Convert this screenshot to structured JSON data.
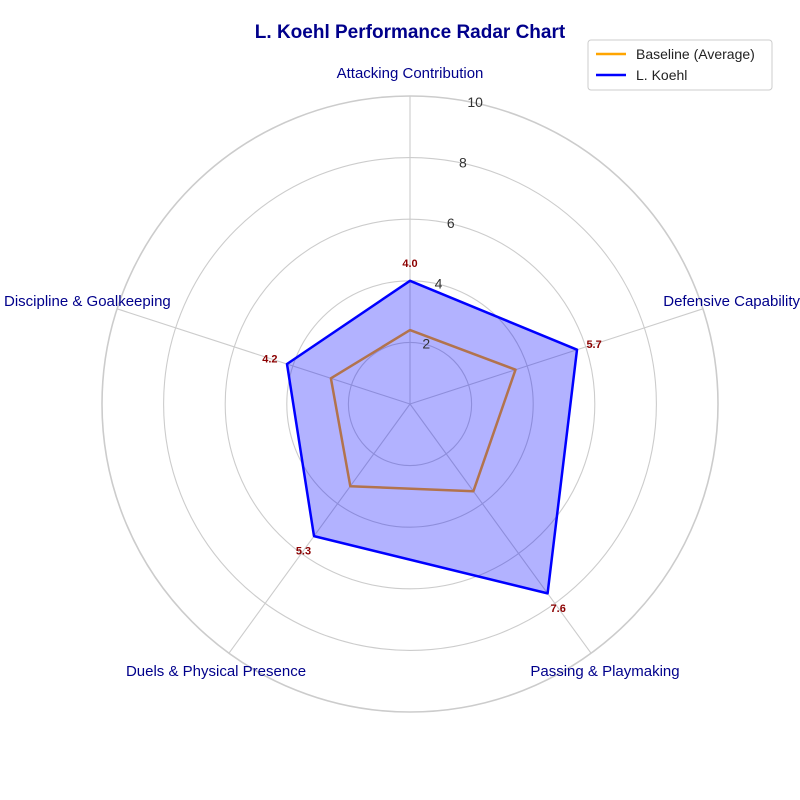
{
  "chart_data": {
    "type": "radar",
    "title": "L. Koehl Performance Radar Chart",
    "categories": [
      "Attacking Contribution",
      "Defensive Capability",
      "Passing & Playmaking",
      "Duels & Physical Presence",
      "Discipline & Goalkeeping"
    ],
    "rlim": [
      0,
      10
    ],
    "rticks": [
      2,
      4,
      6,
      8,
      10
    ],
    "grid": true,
    "legend_position": "top-right",
    "series": [
      {
        "name": "Baseline (Average)",
        "values": [
          2.4,
          3.6,
          3.5,
          3.3,
          2.7
        ],
        "color": "#ffa500",
        "fill": false
      },
      {
        "name": "L. Koehl",
        "values": [
          4.0,
          5.7,
          7.6,
          5.3,
          4.2
        ],
        "color": "#0000ff",
        "fill": true,
        "fill_color": "#0000ff"
      }
    ],
    "data_labels": [
      "4.0",
      "5.7",
      "7.6",
      "5.3",
      "4.2"
    ]
  }
}
